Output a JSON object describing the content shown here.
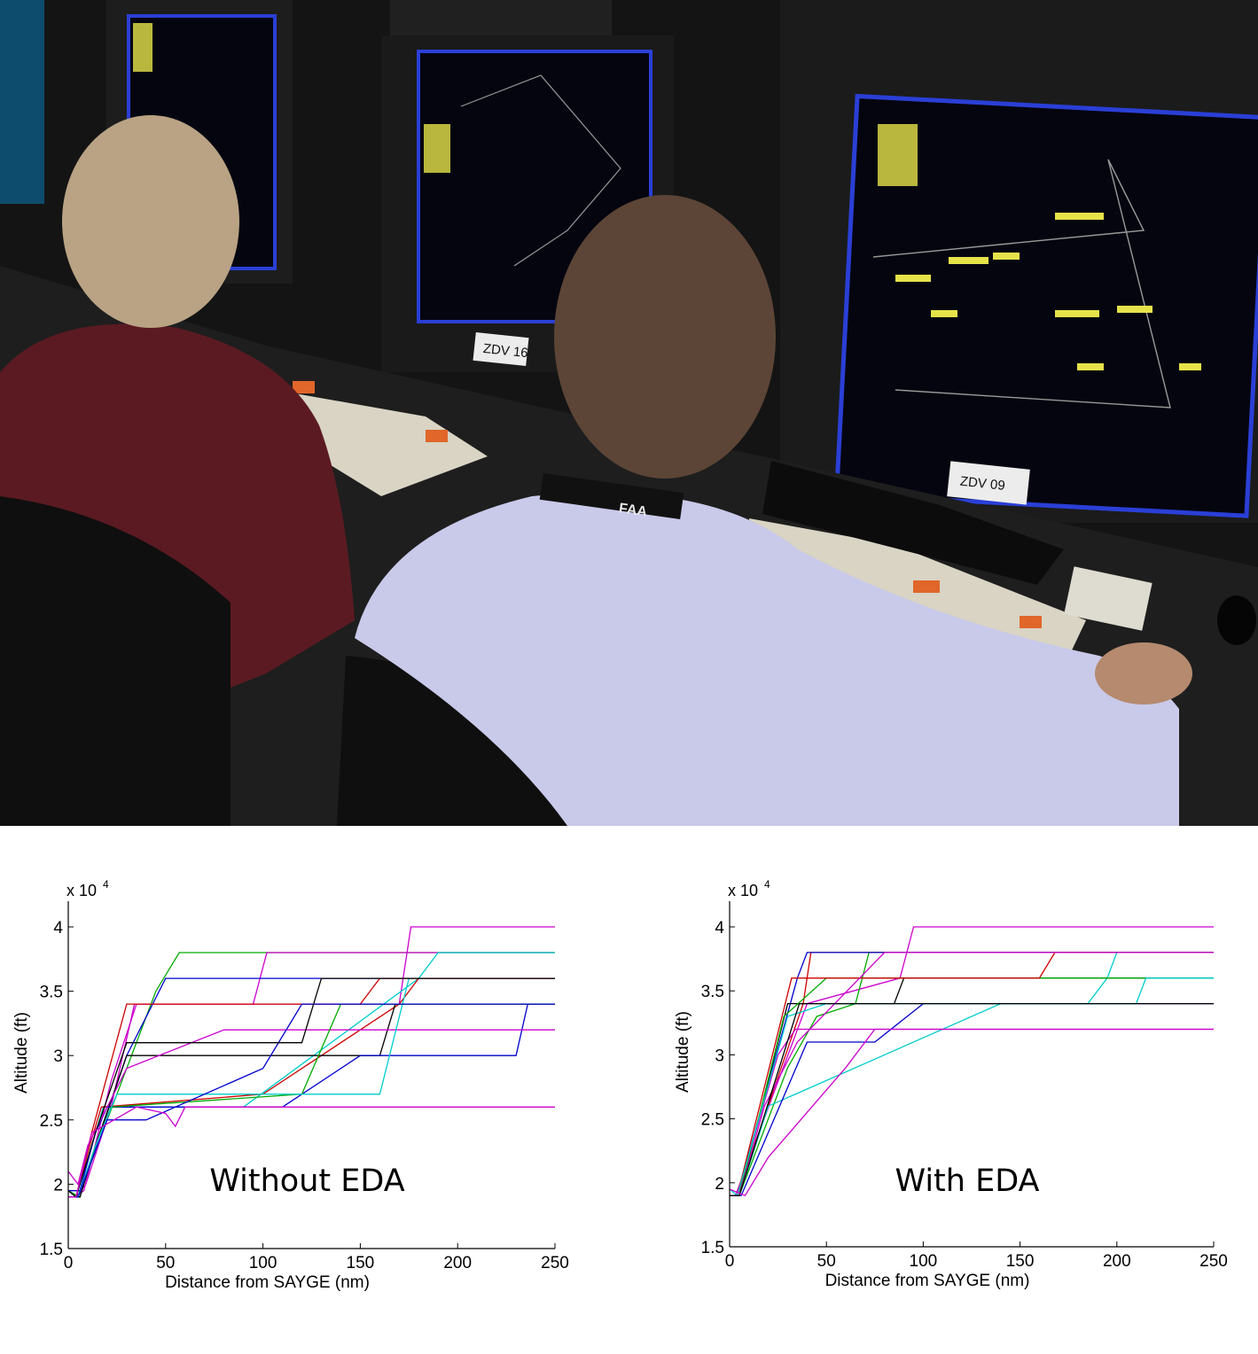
{
  "photo": {
    "description_labels": {
      "station_left_label": "ZDV 16",
      "station_right_label": "ZDV 09",
      "lanyard_text": "FAA"
    },
    "colors": {
      "room_dark": "#141414",
      "radar_bg": "#050510",
      "radar_border": "#2a3fd6",
      "track_yellow": "#e6e34a",
      "shirt_maroon": "#5b1a22",
      "shirt_lavender": "#c9c9ea",
      "keyboard_beige": "#d9d4c4",
      "key_orange": "#e0662a"
    }
  },
  "chart_data": [
    {
      "type": "line",
      "annotation": "Without EDA",
      "xlabel": "Distance from SAYGE (nm)",
      "ylabel": "Altitude (ft)",
      "multiplier_base": "x 10",
      "multiplier_exponent": "4",
      "xlim": [
        0,
        250
      ],
      "ylim": [
        1.5,
        4.2
      ],
      "xticks": [
        "0",
        "50",
        "100",
        "150",
        "200",
        "250"
      ],
      "yticks": [
        "1.5",
        "2",
        "2.5",
        "3",
        "3.5",
        "4"
      ],
      "series": [
        {
          "color": "#cc00cc",
          "x": [
            0,
            3,
            8,
            22,
            35,
            170,
            176,
            250
          ],
          "y": [
            1.9,
            1.9,
            1.95,
            2.8,
            3.4,
            3.4,
            4.0,
            4.0
          ]
        },
        {
          "color": "#00aa00",
          "x": [
            0,
            6,
            10,
            25,
            45,
            57,
            250
          ],
          "y": [
            1.95,
            1.9,
            2.1,
            2.7,
            3.5,
            3.8,
            3.8
          ]
        },
        {
          "color": "#cc00cc",
          "x": [
            0,
            4,
            9,
            22,
            34,
            95,
            102,
            250
          ],
          "y": [
            1.9,
            1.9,
            2.0,
            2.6,
            3.4,
            3.4,
            3.8,
            3.8
          ]
        },
        {
          "color": "#0000cc",
          "x": [
            0,
            5,
            12,
            30,
            50,
            230,
            250
          ],
          "y": [
            1.9,
            1.9,
            2.2,
            3.0,
            3.6,
            3.6,
            3.6
          ]
        },
        {
          "color": "#00cccc",
          "x": [
            0,
            5,
            12,
            18,
            90,
            180,
            190,
            250
          ],
          "y": [
            1.9,
            1.9,
            2.3,
            2.6,
            2.6,
            3.6,
            3.8,
            3.8
          ]
        },
        {
          "color": "#cc0000",
          "x": [
            0,
            4,
            11,
            17,
            100,
            170,
            180,
            250
          ],
          "y": [
            1.9,
            1.9,
            2.3,
            2.6,
            2.7,
            3.4,
            3.6,
            3.6
          ]
        },
        {
          "color": "#000000",
          "x": [
            0,
            6,
            14,
            30,
            160,
            168,
            250
          ],
          "y": [
            1.9,
            1.9,
            2.3,
            3.0,
            3.0,
            3.4,
            3.4
          ]
        },
        {
          "color": "#0000cc",
          "x": [
            0,
            6,
            14,
            20,
            110,
            150,
            230,
            236,
            250
          ],
          "y": [
            1.95,
            1.95,
            2.4,
            2.6,
            2.6,
            3.0,
            3.0,
            3.4,
            3.4
          ]
        },
        {
          "color": "#cc00cc",
          "x": [
            0,
            5,
            10,
            30,
            80,
            135,
            150,
            250
          ],
          "y": [
            2.1,
            2.0,
            2.3,
            2.9,
            3.2,
            3.2,
            3.2,
            3.2
          ]
        },
        {
          "color": "#00aa00",
          "x": [
            0,
            5,
            14,
            22,
            120,
            140,
            175,
            250
          ],
          "y": [
            1.95,
            1.9,
            2.3,
            2.6,
            2.7,
            3.4,
            3.4,
            3.4
          ]
        },
        {
          "color": "#00cccc",
          "x": [
            0,
            5,
            14,
            25,
            85,
            160,
            175,
            250
          ],
          "y": [
            1.9,
            1.9,
            2.3,
            2.7,
            2.7,
            2.7,
            3.6,
            3.6
          ]
        },
        {
          "color": "#cc0000",
          "x": [
            0,
            4,
            12,
            30,
            150,
            160,
            250
          ],
          "y": [
            1.9,
            1.9,
            2.4,
            3.4,
            3.4,
            3.6,
            3.6
          ]
        },
        {
          "color": "#0000cc",
          "x": [
            0,
            5,
            20,
            40,
            100,
            120,
            250
          ],
          "y": [
            1.9,
            1.9,
            2.5,
            2.5,
            2.9,
            3.4,
            3.4
          ]
        },
        {
          "color": "#000000",
          "x": [
            0,
            4,
            14,
            30,
            120,
            130,
            250
          ],
          "y": [
            1.95,
            1.9,
            2.4,
            3.1,
            3.1,
            3.6,
            3.6
          ]
        },
        {
          "color": "#cc00cc",
          "x": [
            0,
            4,
            12,
            35,
            50,
            55,
            60,
            250
          ],
          "y": [
            1.9,
            1.9,
            2.4,
            2.6,
            2.55,
            2.45,
            2.6,
            2.6
          ]
        }
      ]
    },
    {
      "type": "line",
      "annotation": "With EDA",
      "xlabel": "Distance from SAYGE (nm)",
      "ylabel": "Altitude (ft)",
      "multiplier_base": "x 10",
      "multiplier_exponent": "4",
      "xlim": [
        0,
        250
      ],
      "ylim": [
        1.5,
        4.2
      ],
      "xticks": [
        "0",
        "50",
        "100",
        "150",
        "200",
        "250"
      ],
      "yticks": [
        "1.5",
        "2",
        "2.5",
        "3",
        "3.5",
        "4"
      ],
      "series": [
        {
          "color": "#cc00cc",
          "x": [
            0,
            3,
            40,
            88,
            95,
            250
          ],
          "y": [
            1.9,
            1.9,
            3.4,
            3.6,
            4.0,
            4.0
          ]
        },
        {
          "color": "#00aa00",
          "x": [
            0,
            5,
            30,
            45,
            65,
            72,
            250
          ],
          "y": [
            1.9,
            1.9,
            2.9,
            3.3,
            3.4,
            3.8,
            3.8
          ]
        },
        {
          "color": "#cc0000",
          "x": [
            0,
            4,
            38,
            42,
            250
          ],
          "y": [
            1.9,
            1.9,
            3.4,
            3.8,
            3.8
          ]
        },
        {
          "color": "#0000cc",
          "x": [
            0,
            4,
            35,
            40,
            250
          ],
          "y": [
            1.9,
            1.9,
            3.6,
            3.8,
            3.8
          ]
        },
        {
          "color": "#000000",
          "x": [
            0,
            5,
            30,
            85,
            90,
            250
          ],
          "y": [
            1.9,
            1.9,
            3.4,
            3.4,
            3.6,
            3.6
          ]
        },
        {
          "color": "#00cccc",
          "x": [
            0,
            5,
            20,
            140,
            185,
            195,
            200,
            250
          ],
          "y": [
            1.9,
            1.9,
            2.6,
            3.4,
            3.4,
            3.6,
            3.8,
            3.8
          ]
        },
        {
          "color": "#cc00cc",
          "x": [
            0,
            4,
            25,
            34,
            250
          ],
          "y": [
            1.9,
            1.9,
            3.0,
            3.2,
            3.2
          ]
        },
        {
          "color": "#0000cc",
          "x": [
            0,
            6,
            40,
            75,
            100,
            210,
            250
          ],
          "y": [
            1.9,
            1.9,
            3.1,
            3.1,
            3.4,
            3.4,
            3.4
          ]
        },
        {
          "color": "#00aa00",
          "x": [
            0,
            5,
            28,
            50,
            90,
            250
          ],
          "y": [
            1.9,
            1.9,
            3.3,
            3.6,
            3.6,
            3.6
          ]
        },
        {
          "color": "#cc0000",
          "x": [
            0,
            4,
            32,
            160,
            168,
            250
          ],
          "y": [
            1.9,
            1.9,
            3.6,
            3.6,
            3.8,
            3.8
          ]
        },
        {
          "color": "#cc00cc",
          "x": [
            0,
            5,
            18,
            35,
            80,
            95,
            250
          ],
          "y": [
            1.9,
            1.9,
            2.6,
            3.1,
            3.8,
            3.8,
            3.8
          ]
        },
        {
          "color": "#00cccc",
          "x": [
            0,
            4,
            30,
            50,
            210,
            215,
            250
          ],
          "y": [
            1.95,
            1.9,
            3.3,
            3.4,
            3.4,
            3.6,
            3.6
          ]
        },
        {
          "color": "#000000",
          "x": [
            0,
            5,
            36,
            45,
            250
          ],
          "y": [
            1.9,
            1.9,
            3.4,
            3.4,
            3.4
          ]
        },
        {
          "color": "#cc00cc",
          "x": [
            0,
            8,
            20,
            60,
            75,
            250
          ],
          "y": [
            1.95,
            1.9,
            2.2,
            2.9,
            3.2,
            3.2
          ]
        }
      ]
    }
  ]
}
